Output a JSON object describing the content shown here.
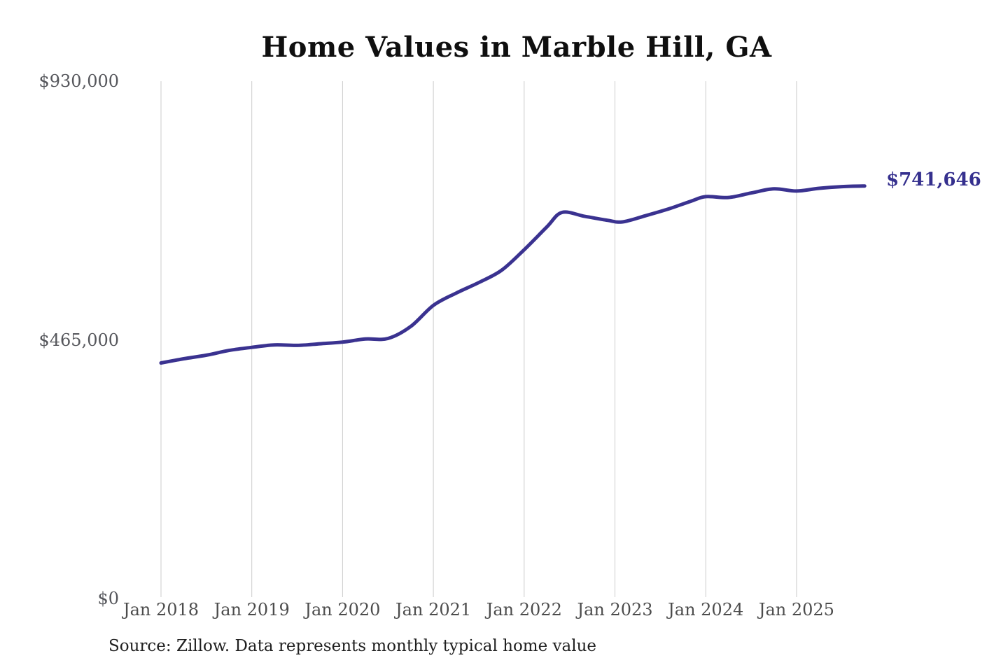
{
  "chart_data": {
    "type": "line",
    "title": "Home Values in Marble Hill, GA",
    "final_value_label": "$741,646",
    "final_value": 741646,
    "source": "Source: Zillow. Data represents monthly typical home value",
    "series": [
      {
        "name": "Monthly typical home value",
        "points": [
          {
            "date": "2018-01",
            "value": 423500
          },
          {
            "date": "2018-04",
            "value": 431000
          },
          {
            "date": "2018-07",
            "value": 437500
          },
          {
            "date": "2018-10",
            "value": 446000
          },
          {
            "date": "2019-01",
            "value": 451500
          },
          {
            "date": "2019-04",
            "value": 456000
          },
          {
            "date": "2019-07",
            "value": 455000
          },
          {
            "date": "2019-10",
            "value": 458000
          },
          {
            "date": "2020-01",
            "value": 461000
          },
          {
            "date": "2020-04",
            "value": 466500
          },
          {
            "date": "2020-07",
            "value": 467500
          },
          {
            "date": "2020-10",
            "value": 489000
          },
          {
            "date": "2021-01",
            "value": 527000
          },
          {
            "date": "2021-04",
            "value": 549000
          },
          {
            "date": "2021-07",
            "value": 568000
          },
          {
            "date": "2021-10",
            "value": 590000
          },
          {
            "date": "2022-01",
            "value": 627000
          },
          {
            "date": "2022-04",
            "value": 668000
          },
          {
            "date": "2022-06",
            "value": 694000
          },
          {
            "date": "2022-09",
            "value": 687000
          },
          {
            "date": "2022-12",
            "value": 680000
          },
          {
            "date": "2023-02",
            "value": 677000
          },
          {
            "date": "2023-05",
            "value": 688000
          },
          {
            "date": "2023-08",
            "value": 700000
          },
          {
            "date": "2023-11",
            "value": 714000
          },
          {
            "date": "2024-01",
            "value": 722500
          },
          {
            "date": "2024-04",
            "value": 721000
          },
          {
            "date": "2024-07",
            "value": 729000
          },
          {
            "date": "2024-10",
            "value": 736500
          },
          {
            "date": "2025-01",
            "value": 732500
          },
          {
            "date": "2025-04",
            "value": 737500
          },
          {
            "date": "2025-07",
            "value": 740500
          },
          {
            "date": "2025-10",
            "value": 741646
          }
        ]
      }
    ],
    "x_ticks": [
      {
        "label": "Jan 2018",
        "year": 2018
      },
      {
        "label": "Jan 2019",
        "year": 2019
      },
      {
        "label": "Jan 2020",
        "year": 2020
      },
      {
        "label": "Jan 2021",
        "year": 2021
      },
      {
        "label": "Jan 2022",
        "year": 2022
      },
      {
        "label": "Jan 2023",
        "year": 2023
      },
      {
        "label": "Jan 2024",
        "year": 2024
      },
      {
        "label": "Jan 2025",
        "year": 2025
      }
    ],
    "y_ticks": [
      {
        "label": "$930,000",
        "value": 930000
      },
      {
        "label": "$465,000",
        "value": 465000
      },
      {
        "label": "$0",
        "value": 0
      }
    ],
    "ylim": [
      0,
      930000
    ],
    "grid": "vertical-only",
    "legend": "none",
    "colors": {
      "line": "#3a3290",
      "end_label": "#35308e",
      "grid": "#cccccc",
      "y_tick_text": "#55565b",
      "x_tick_text": "#4c4c4c",
      "title_text": "#0f0f0f",
      "source_text": "#1f1f1f",
      "background": "#ffffff"
    }
  }
}
